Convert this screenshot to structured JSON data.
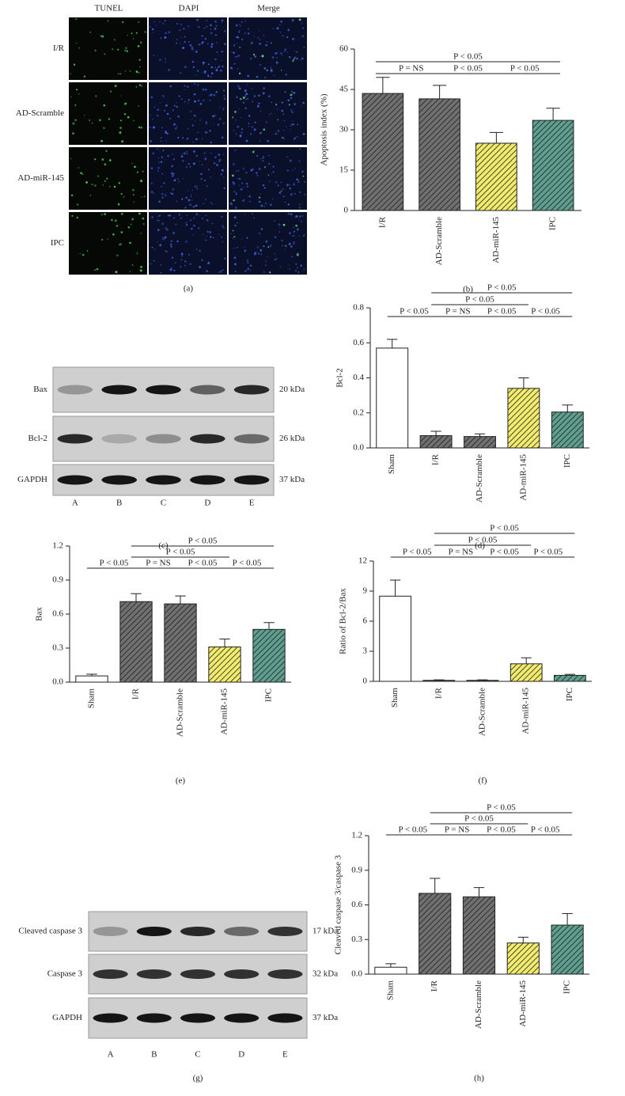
{
  "panel_a": {
    "columns": [
      "TUNEL",
      "DAPI",
      "Merge"
    ],
    "rows": [
      "I/R",
      "AD-Scramble",
      "AD-miR-145",
      "IPC"
    ],
    "label": "(a)"
  },
  "panel_c": {
    "rows": [
      {
        "name": "Bax",
        "size": "20 kDa"
      },
      {
        "name": "Bcl-2",
        "size": "26 kDa"
      },
      {
        "name": "GAPDH",
        "size": "37 kDa"
      }
    ],
    "lanes": [
      "A",
      "B",
      "C",
      "D",
      "E"
    ],
    "label": "(c)"
  },
  "panel_g": {
    "rows": [
      {
        "name": "Cleaved caspase 3",
        "size": "17 kDa"
      },
      {
        "name": "Caspase 3",
        "size": "32 kDa"
      },
      {
        "name": "GAPDH",
        "size": "37 kDa"
      }
    ],
    "lanes": [
      "A",
      "B",
      "C",
      "D",
      "E"
    ],
    "label": "(g)"
  },
  "chart_data": [
    {
      "type": "bar",
      "y_label": "Apoptosis index (%)",
      "categories": [
        "I/R",
        "AD-Scramble",
        "AD-miR-145",
        "IPC"
      ],
      "values": [
        43.5,
        41.5,
        25,
        33.5
      ],
      "errors": [
        6,
        5,
        4,
        4.5
      ],
      "colors": [
        "#707070",
        "#707070",
        "#f2ec6e",
        "#5e9f90"
      ],
      "hatch": [
        true,
        true,
        true,
        true
      ],
      "ylim": [
        0,
        60
      ],
      "yticks": [
        0,
        15,
        30,
        45,
        60
      ],
      "comparisons": [
        {
          "from": "I/R",
          "to": "IPC",
          "label": "P < 0.05"
        },
        {
          "from": "I/R",
          "to": "AD-Scramble",
          "label": "P = NS"
        },
        {
          "from": "AD-Scramble",
          "to": "AD-miR-145",
          "label": "P < 0.05"
        },
        {
          "from": "AD-miR-145",
          "to": "IPC",
          "label": "P < 0.05"
        }
      ],
      "panel_label": "(b)"
    },
    {
      "type": "bar",
      "y_label": "Bcl-2",
      "categories": [
        "Sham",
        "I/R",
        "AD-Scramble",
        "AD-miR-145",
        "IPC"
      ],
      "values": [
        0.57,
        0.07,
        0.065,
        0.34,
        0.205
      ],
      "errors": [
        0.05,
        0.025,
        0.015,
        0.06,
        0.04
      ],
      "colors": [
        "#ffffff",
        "#707070",
        "#707070",
        "#f2ec6e",
        "#5e9f90"
      ],
      "hatch": [
        false,
        true,
        true,
        true,
        true
      ],
      "ylim": [
        0,
        0.8
      ],
      "yticks": [
        {
          "value": 0,
          "label": "0.0"
        },
        0.2,
        0.4,
        0.6,
        0.8
      ],
      "comparisons": [
        {
          "from": "I/R",
          "to": "IPC",
          "label": "P < 0.05"
        },
        {
          "from": "I/R",
          "to": "AD-miR-145",
          "label": "P < 0.05"
        },
        {
          "from": "Sham",
          "to": "I/R",
          "label": "P < 0.05"
        },
        {
          "from": "I/R",
          "to": "AD-Scramble",
          "label": "P = NS"
        },
        {
          "from": "AD-Scramble",
          "to": "AD-miR-145",
          "label": "P < 0.05"
        },
        {
          "from": "AD-miR-145",
          "to": "IPC",
          "label": "P < 0.05"
        }
      ],
      "panel_label": "(d)"
    },
    {
      "type": "bar",
      "y_label": "Bax",
      "categories": [
        "Sham",
        "I/R",
        "AD-Scramble",
        "AD-miR-145",
        "IPC"
      ],
      "values": [
        0.055,
        0.71,
        0.69,
        0.31,
        0.465
      ],
      "errors": [
        0.015,
        0.07,
        0.07,
        0.07,
        0.06
      ],
      "colors": [
        "#ffffff",
        "#707070",
        "#707070",
        "#f2ec6e",
        "#5e9f90"
      ],
      "hatch": [
        false,
        true,
        true,
        true,
        true
      ],
      "ylim": [
        0,
        1.2
      ],
      "yticks": [
        {
          "value": 0,
          "label": "0.0"
        },
        0.3,
        0.6,
        0.9,
        1.2
      ],
      "comparisons": [
        {
          "from": "I/R",
          "to": "IPC",
          "label": "P < 0.05"
        },
        {
          "from": "I/R",
          "to": "AD-miR-145",
          "label": "P < 0.05"
        },
        {
          "from": "Sham",
          "to": "I/R",
          "label": "P < 0.05"
        },
        {
          "from": "I/R",
          "to": "AD-Scramble",
          "label": "P = NS"
        },
        {
          "from": "AD-Scramble",
          "to": "AD-miR-145",
          "label": "P < 0.05"
        },
        {
          "from": "AD-miR-145",
          "to": "IPC",
          "label": "P < 0.05"
        }
      ],
      "panel_label": "(e)"
    },
    {
      "type": "bar",
      "y_label": "Ratio of Bcl-2/Bax",
      "categories": [
        "Sham",
        "I/R",
        "AD-Scramble",
        "AD-miR-145",
        "IPC"
      ],
      "values": [
        8.5,
        0.1,
        0.1,
        1.75,
        0.6
      ],
      "errors": [
        1.6,
        0.05,
        0.05,
        0.6,
        0.1
      ],
      "colors": [
        "#ffffff",
        "#707070",
        "#707070",
        "#f2ec6e",
        "#5e9f90"
      ],
      "hatch": [
        false,
        true,
        true,
        true,
        true
      ],
      "ylim": [
        0,
        12
      ],
      "yticks": [
        0,
        3,
        6,
        9,
        12
      ],
      "comparisons": [
        {
          "from": "I/R",
          "to": "IPC",
          "label": "P < 0.05"
        },
        {
          "from": "I/R",
          "to": "AD-miR-145",
          "label": "P < 0.05"
        },
        {
          "from": "Sham",
          "to": "I/R",
          "label": "P < 0.05"
        },
        {
          "from": "I/R",
          "to": "AD-Scramble",
          "label": "P = NS"
        },
        {
          "from": "AD-Scramble",
          "to": "AD-miR-145",
          "label": "P < 0.05"
        },
        {
          "from": "AD-miR-145",
          "to": "IPC",
          "label": "P < 0.05"
        }
      ],
      "panel_label": "(f)"
    },
    {
      "type": "bar",
      "y_label": "Cleaved caspase 3/caspase 3",
      "categories": [
        "Sham",
        "I/R",
        "AD-Scramble",
        "AD-miR-145",
        "IPC"
      ],
      "values": [
        0.06,
        0.7,
        0.67,
        0.27,
        0.425
      ],
      "errors": [
        0.03,
        0.13,
        0.08,
        0.05,
        0.1
      ],
      "colors": [
        "#ffffff",
        "#707070",
        "#707070",
        "#f2ec6e",
        "#5e9f90"
      ],
      "hatch": [
        false,
        true,
        true,
        true,
        true
      ],
      "ylim": [
        0,
        1.2
      ],
      "yticks": [
        {
          "value": 0,
          "label": "0.0"
        },
        0.3,
        0.6,
        0.9,
        1.2
      ],
      "comparisons": [
        {
          "from": "I/R",
          "to": "IPC",
          "label": "P < 0.05"
        },
        {
          "from": "I/R",
          "to": "AD-miR-145",
          "label": "P < 0.05"
        },
        {
          "from": "Sham",
          "to": "I/R",
          "label": "P < 0.05"
        },
        {
          "from": "I/R",
          "to": "AD-Scramble",
          "label": "P = NS"
        },
        {
          "from": "AD-Scramble",
          "to": "AD-miR-145",
          "label": "P < 0.05"
        },
        {
          "from": "AD-miR-145",
          "to": "IPC",
          "label": "P < 0.05"
        }
      ],
      "panel_label": "(h)"
    }
  ]
}
